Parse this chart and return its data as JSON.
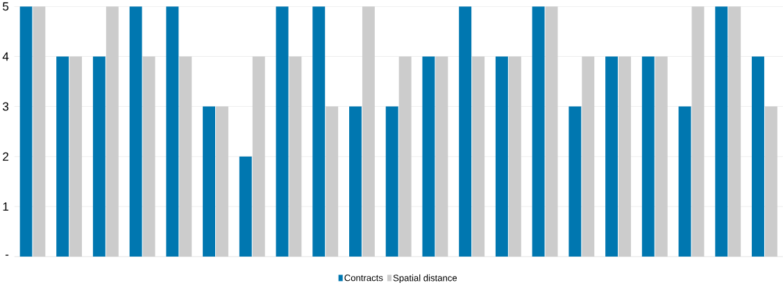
{
  "chart_data": {
    "type": "bar",
    "categories": [
      null,
      null,
      null,
      null,
      null,
      null,
      null,
      null,
      null,
      null,
      null,
      null,
      null,
      null,
      null,
      null,
      null,
      null,
      null,
      null,
      null
    ],
    "series": [
      {
        "name": "Contracts",
        "color": "#0077b0",
        "values": [
          5,
          4,
          4,
          5,
          5,
          3,
          2,
          5,
          5,
          3,
          3,
          4,
          5,
          4,
          5,
          3,
          4,
          4,
          3,
          5,
          4
        ]
      },
      {
        "name": "Spatial distance",
        "color": "#cccccc",
        "values": [
          5,
          4,
          5,
          4,
          4,
          3,
          4,
          4,
          3,
          5,
          4,
          4,
          4,
          4,
          5,
          4,
          4,
          4,
          5,
          5,
          3
        ]
      }
    ],
    "ylim": [
      0,
      5
    ],
    "yticks": [
      {
        "value": 0,
        "label": "-"
      },
      1,
      2,
      3,
      4,
      5
    ],
    "grid": "y",
    "legend": "bottom"
  }
}
